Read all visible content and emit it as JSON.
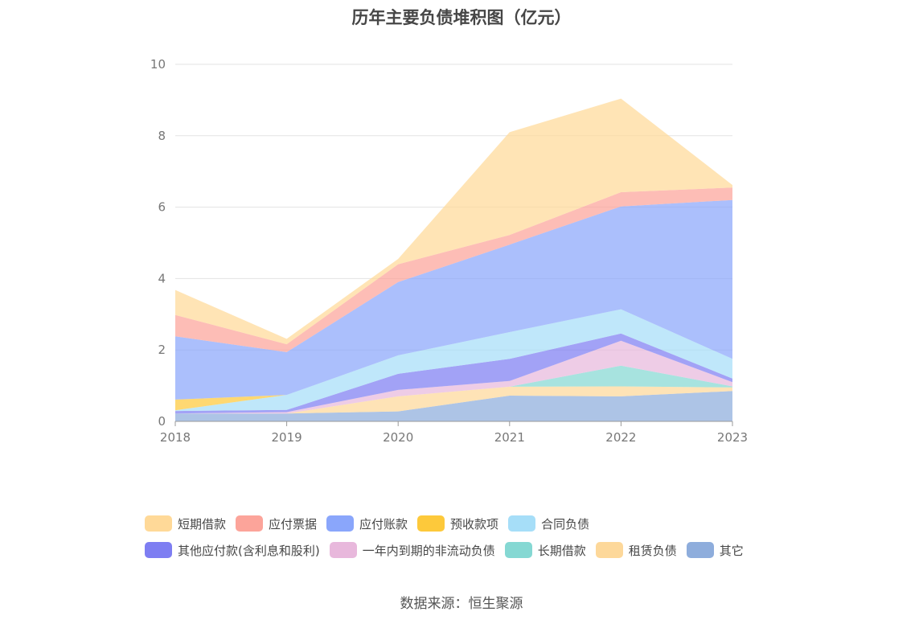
{
  "title": "历年主要负债堆积图（亿元）",
  "source": "数据来源：恒生聚源",
  "chart_data": {
    "type": "area",
    "stacked": true,
    "title": "历年主要负债堆积图（亿元）",
    "xlabel": "",
    "ylabel": "",
    "x": [
      "2018",
      "2019",
      "2020",
      "2021",
      "2022",
      "2023"
    ],
    "ylim": [
      0,
      10
    ],
    "yticks": [
      "0",
      "2",
      "4",
      "6",
      "8",
      "10"
    ],
    "grid": true,
    "legend_position": "bottom",
    "series": [
      {
        "name": "其它",
        "color": "#8eaddc",
        "values": [
          0.22,
          0.22,
          0.28,
          0.72,
          0.7,
          0.85
        ]
      },
      {
        "name": "租赁负债",
        "color": "#fdd89a",
        "values": [
          0,
          0,
          0.42,
          0.25,
          0.28,
          0.1
        ]
      },
      {
        "name": "长期借款",
        "color": "#85d8d3",
        "values": [
          0,
          0,
          0,
          0,
          0.58,
          0.03
        ]
      },
      {
        "name": "一年内到期的非流动负债",
        "color": "#e8b8dc",
        "values": [
          0,
          0.04,
          0.18,
          0.16,
          0.7,
          0.12
        ]
      },
      {
        "name": "其他应付款(含利息和股利)",
        "color": "#7e7ef2",
        "values": [
          0.07,
          0.06,
          0.45,
          0.62,
          0.2,
          0.1
        ]
      },
      {
        "name": "合同负债",
        "color": "#a6def8",
        "values": [
          0.02,
          0.42,
          0.52,
          0.75,
          0.68,
          0.55
        ]
      },
      {
        "name": "预收款项",
        "color": "#fdc93b",
        "values": [
          0.3,
          0,
          0,
          0,
          0,
          0
        ]
      },
      {
        "name": "应付账款",
        "color": "#8aa6fb",
        "values": [
          1.77,
          1.2,
          2.05,
          2.45,
          2.88,
          4.45
        ]
      },
      {
        "name": "应付票据",
        "color": "#fca49a",
        "values": [
          0.6,
          0.22,
          0.5,
          0.27,
          0.4,
          0.35
        ]
      },
      {
        "name": "短期借款",
        "color": "#ffd998",
        "values": [
          0.7,
          0.15,
          0.15,
          2.88,
          2.62,
          0.07
        ]
      }
    ]
  },
  "legend": [
    {
      "label": "短期借款",
      "color": "#ffd998"
    },
    {
      "label": "应付票据",
      "color": "#fca49a"
    },
    {
      "label": "应付账款",
      "color": "#8aa6fb"
    },
    {
      "label": "预收款项",
      "color": "#fdc93b"
    },
    {
      "label": "合同负债",
      "color": "#a6def8"
    },
    {
      "label": "其他应付款(含利息和股利)",
      "color": "#7e7ef2"
    },
    {
      "label": "一年内到期的非流动负债",
      "color": "#e8b8dc"
    },
    {
      "label": "长期借款",
      "color": "#85d8d3"
    },
    {
      "label": "租赁负债",
      "color": "#fdd89a"
    },
    {
      "label": "其它",
      "color": "#8eaddc"
    }
  ]
}
